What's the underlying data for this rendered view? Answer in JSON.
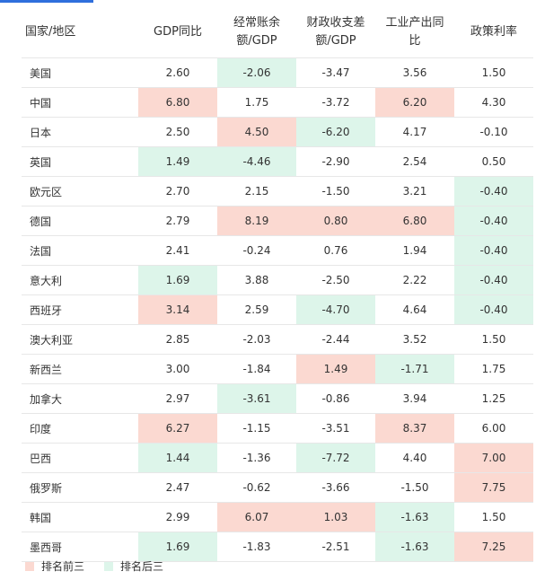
{
  "headers": [
    "国家/地区",
    "GDP同比",
    "经常账余\n额/GDP",
    "财政收支差\n额/GDP",
    "工业产出同\n比",
    "政策利率"
  ],
  "rows": [
    {
      "country": "美国",
      "values": [
        "2.60",
        "-2.06",
        "-3.47",
        "3.56",
        "1.50"
      ],
      "marks": [
        "",
        "lo",
        "",
        "",
        ""
      ]
    },
    {
      "country": "中国",
      "values": [
        "6.80",
        "1.75",
        "-3.72",
        "6.20",
        "4.30"
      ],
      "marks": [
        "hi",
        "",
        "",
        "hi",
        ""
      ]
    },
    {
      "country": "日本",
      "values": [
        "2.50",
        "4.50",
        "-6.20",
        "4.17",
        "-0.10"
      ],
      "marks": [
        "",
        "hi",
        "lo",
        "",
        ""
      ]
    },
    {
      "country": "英国",
      "values": [
        "1.49",
        "-4.46",
        "-2.90",
        "2.54",
        "0.50"
      ],
      "marks": [
        "lo",
        "lo",
        "",
        "",
        ""
      ]
    },
    {
      "country": "欧元区",
      "values": [
        "2.70",
        "2.15",
        "-1.50",
        "3.21",
        "-0.40"
      ],
      "marks": [
        "",
        "",
        "",
        "",
        "lo"
      ]
    },
    {
      "country": "德国",
      "values": [
        "2.79",
        "8.19",
        "0.80",
        "6.80",
        "-0.40"
      ],
      "marks": [
        "",
        "hi",
        "hi",
        "hi",
        "lo"
      ]
    },
    {
      "country": "法国",
      "values": [
        "2.41",
        "-0.24",
        "0.76",
        "1.94",
        "-0.40"
      ],
      "marks": [
        "",
        "",
        "",
        "",
        "lo"
      ]
    },
    {
      "country": "意大利",
      "values": [
        "1.69",
        "3.88",
        "-2.50",
        "2.22",
        "-0.40"
      ],
      "marks": [
        "lo",
        "",
        "",
        "",
        "lo"
      ]
    },
    {
      "country": "西班牙",
      "values": [
        "3.14",
        "2.59",
        "-4.70",
        "4.64",
        "-0.40"
      ],
      "marks": [
        "hi",
        "",
        "lo",
        "",
        "lo"
      ]
    },
    {
      "country": "澳大利亚",
      "values": [
        "2.85",
        "-2.03",
        "-2.44",
        "3.52",
        "1.50"
      ],
      "marks": [
        "",
        "",
        "",
        "",
        ""
      ]
    },
    {
      "country": "新西兰",
      "values": [
        "3.00",
        "-1.84",
        "1.49",
        "-1.71",
        "1.75"
      ],
      "marks": [
        "",
        "",
        "hi",
        "lo",
        ""
      ]
    },
    {
      "country": "加拿大",
      "values": [
        "2.97",
        "-3.61",
        "-0.86",
        "3.94",
        "1.25"
      ],
      "marks": [
        "",
        "lo",
        "",
        "",
        ""
      ]
    },
    {
      "country": "印度",
      "values": [
        "6.27",
        "-1.15",
        "-3.51",
        "8.37",
        "6.00"
      ],
      "marks": [
        "hi",
        "",
        "",
        "hi",
        ""
      ]
    },
    {
      "country": "巴西",
      "values": [
        "1.44",
        "-1.36",
        "-7.72",
        "4.40",
        "7.00"
      ],
      "marks": [
        "lo",
        "",
        "lo",
        "",
        "hi"
      ]
    },
    {
      "country": "俄罗斯",
      "values": [
        "2.47",
        "-0.62",
        "-3.66",
        "-1.50",
        "7.75"
      ],
      "marks": [
        "",
        "",
        "",
        "",
        "hi"
      ]
    },
    {
      "country": "韩国",
      "values": [
        "2.99",
        "6.07",
        "1.03",
        "-1.63",
        "1.50"
      ],
      "marks": [
        "",
        "hi",
        "hi",
        "lo",
        ""
      ]
    },
    {
      "country": "墨西哥",
      "values": [
        "1.69",
        "-1.83",
        "-2.51",
        "-1.63",
        "7.25"
      ],
      "marks": [
        "lo",
        "",
        "",
        "lo",
        "hi"
      ]
    }
  ],
  "legend": {
    "top3": "排名前三",
    "bottom3": "排名后三"
  },
  "colors": {
    "top3": "#fbd9d1",
    "bottom3": "#ddf5ea",
    "accent": "#2f6fdc"
  }
}
